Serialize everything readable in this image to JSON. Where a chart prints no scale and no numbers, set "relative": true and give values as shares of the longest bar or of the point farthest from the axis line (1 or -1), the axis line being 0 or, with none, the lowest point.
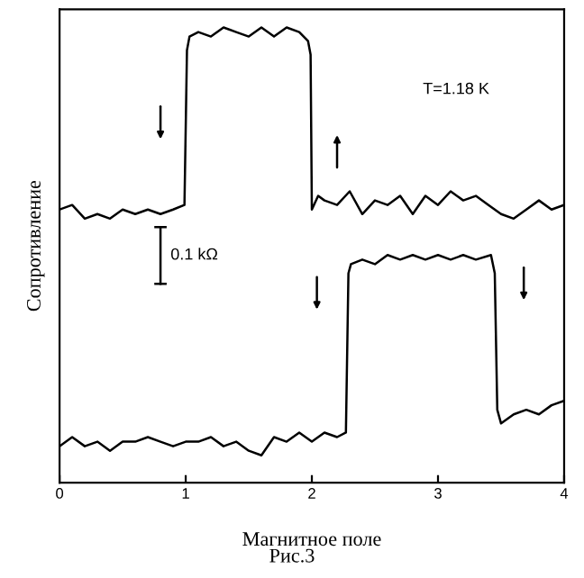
{
  "chart_data": {
    "type": "line",
    "relative": true,
    "xlabel": "Магнитное поле",
    "ylabel": "Сопротивление",
    "x": [
      0.0,
      0.1,
      0.2,
      0.3,
      0.4,
      0.5,
      0.6,
      0.7,
      0.8,
      0.9,
      0.99,
      1.01,
      1.03,
      1.1,
      1.2,
      1.3,
      1.4,
      1.5,
      1.6,
      1.7,
      1.8,
      1.9,
      1.97,
      1.99,
      2.0,
      2.05,
      2.1,
      2.2,
      2.3,
      2.4,
      2.5,
      2.6,
      2.7,
      2.8,
      2.9,
      3.0,
      3.1,
      3.2,
      3.3,
      3.4,
      3.5,
      3.6,
      3.7,
      3.8,
      3.9,
      4.0
    ],
    "series": [
      {
        "color": "#000000",
        "values": [
          0.6,
          0.61,
          0.58,
          0.59,
          0.58,
          0.6,
          0.59,
          0.6,
          0.59,
          0.6,
          0.61,
          0.95,
          0.98,
          0.99,
          0.98,
          1.0,
          0.99,
          0.98,
          1.0,
          0.98,
          1.0,
          0.99,
          0.97,
          0.94,
          0.6,
          0.63,
          0.62,
          0.61,
          0.64,
          0.59,
          0.62,
          0.61,
          0.63,
          0.59,
          0.63,
          0.61,
          0.64,
          0.62,
          0.63,
          0.61,
          0.59,
          0.58,
          0.6,
          0.62,
          0.6,
          0.61
        ]
      },
      {
        "color": "#000000",
        "x": [
          0.0,
          0.1,
          0.2,
          0.3,
          0.4,
          0.5,
          0.6,
          0.7,
          0.8,
          0.9,
          1.0,
          1.1,
          1.2,
          1.3,
          1.4,
          1.5,
          1.6,
          1.7,
          1.8,
          1.9,
          2.0,
          2.1,
          2.2,
          2.27,
          2.29,
          2.31,
          2.4,
          2.5,
          2.6,
          2.7,
          2.8,
          2.9,
          3.0,
          3.1,
          3.2,
          3.3,
          3.42,
          3.45,
          3.47,
          3.5,
          3.6,
          3.7,
          3.8,
          3.9,
          4.0
        ],
        "values": [
          0.08,
          0.1,
          0.08,
          0.09,
          0.07,
          0.09,
          0.09,
          0.1,
          0.09,
          0.08,
          0.09,
          0.09,
          0.1,
          0.08,
          0.09,
          0.07,
          0.06,
          0.1,
          0.09,
          0.11,
          0.09,
          0.11,
          0.1,
          0.11,
          0.46,
          0.48,
          0.49,
          0.48,
          0.5,
          0.49,
          0.5,
          0.49,
          0.5,
          0.49,
          0.5,
          0.49,
          0.5,
          0.46,
          0.16,
          0.13,
          0.15,
          0.16,
          0.15,
          0.17,
          0.18
        ]
      }
    ],
    "xlim": [
      0,
      4
    ],
    "xticks": [
      0,
      1,
      2,
      3,
      4
    ],
    "tick_labels": "x",
    "grid": false,
    "legend": false,
    "marker": "none",
    "line_style": "solid",
    "annotations": [
      "T=1.18 K",
      "0.1 kΩ",
      "Рис.3"
    ]
  }
}
